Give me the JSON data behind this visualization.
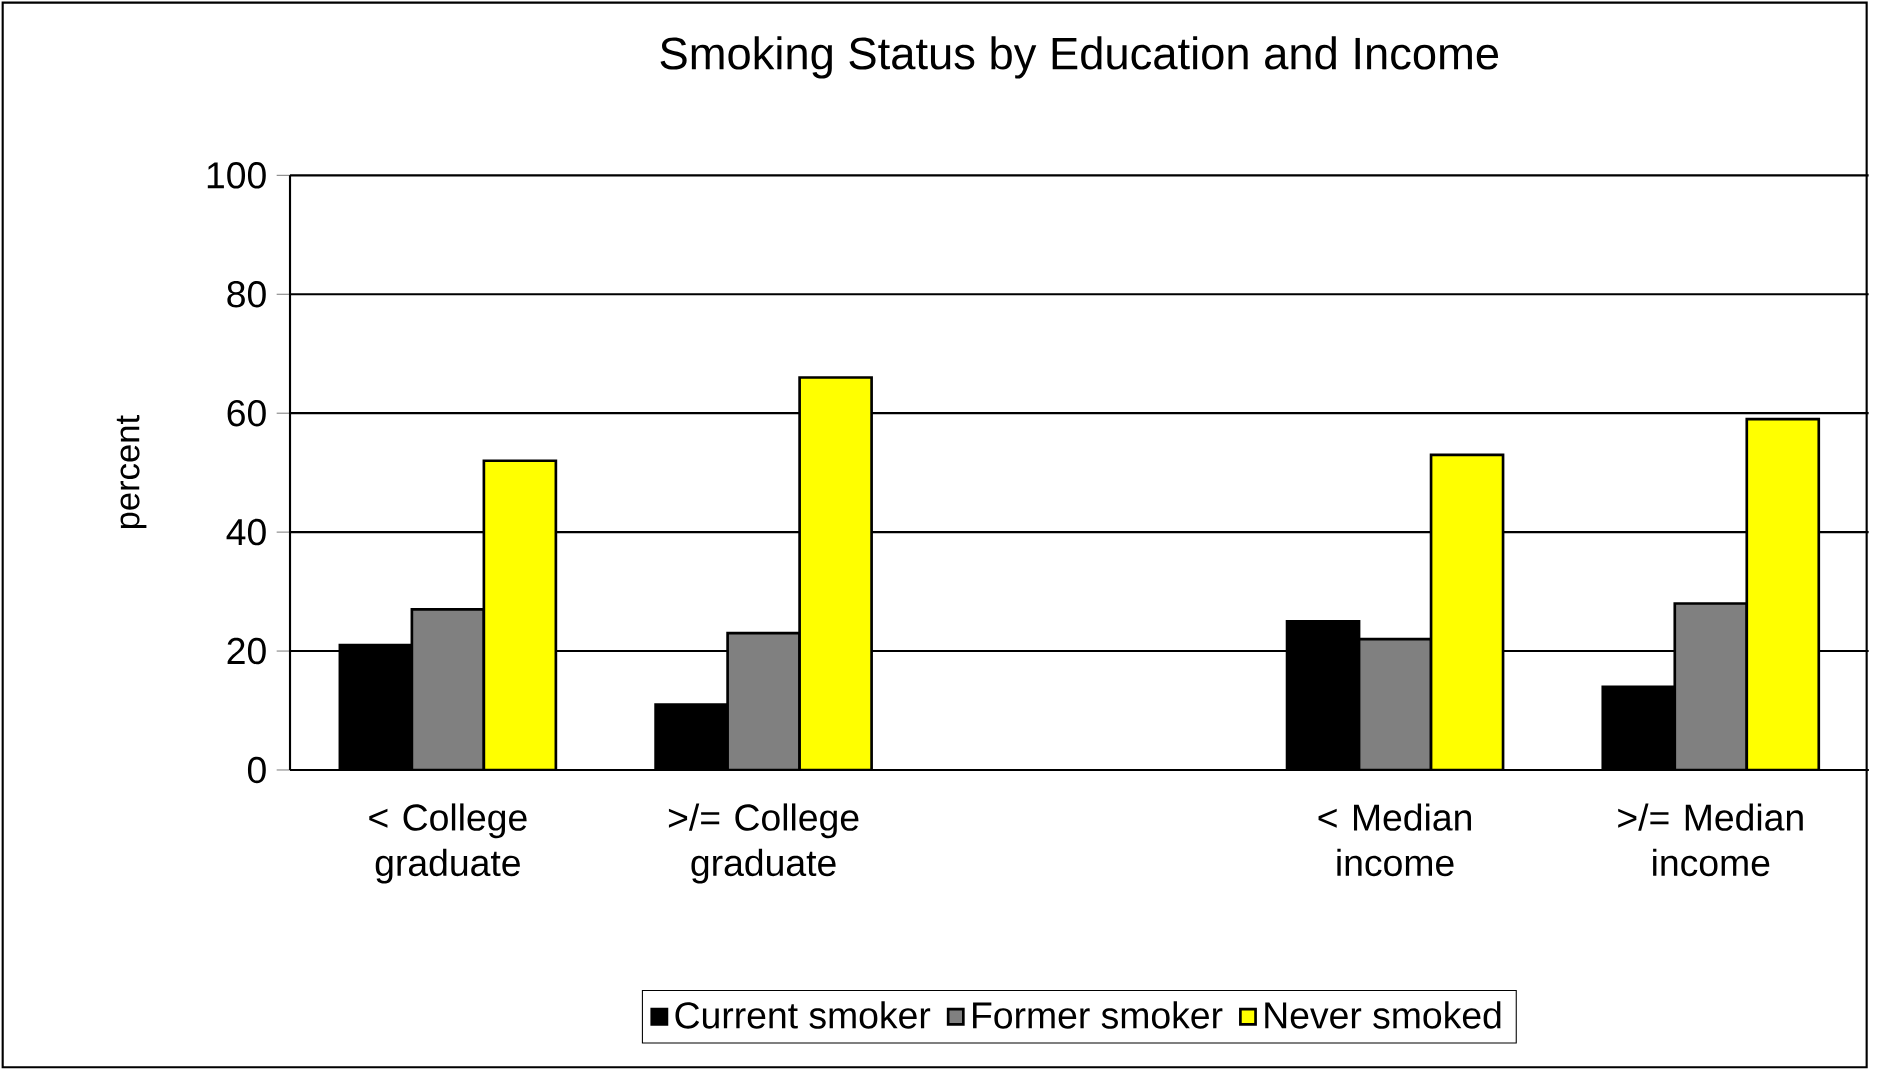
{
  "chart_data": {
    "type": "bar",
    "title": "Smoking Status by Education and Income",
    "ylabel": "percent",
    "categories": [
      "< College graduate",
      ">/= College graduate",
      null,
      "< Median income",
      ">/= Median income"
    ],
    "series": [
      {
        "name": "Current smoker",
        "color": "#000000",
        "values": [
          21,
          11,
          null,
          25,
          14
        ]
      },
      {
        "name": "Former smoker",
        "color": "#808080",
        "values": [
          27,
          23,
          null,
          22,
          28
        ]
      },
      {
        "name": "Never smoked",
        "color": "#ffff00",
        "values": [
          52,
          66,
          null,
          53,
          59
        ]
      }
    ],
    "ylim": [
      0,
      100
    ],
    "yticks": [
      0,
      20,
      40,
      60,
      80,
      100
    ],
    "grid": "y",
    "legend": "bottom"
  }
}
